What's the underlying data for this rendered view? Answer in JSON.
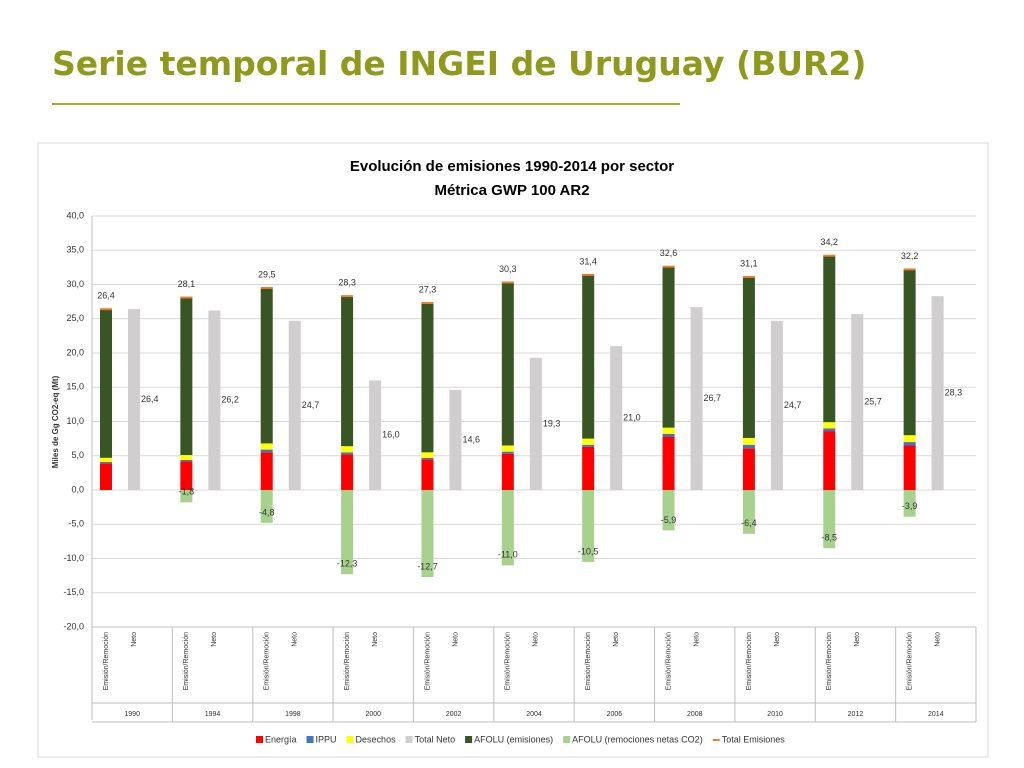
{
  "slide_title": "Serie temporal de INGEI de Uruguay (BUR2)",
  "chart_data": {
    "type": "stacked_bar",
    "title": [
      "Evolución de emisiones 1990-2014 por sector",
      "Métrica GWP 100 AR2"
    ],
    "y_label": "Miles de Gg CO2-eq (Mt)",
    "categories": [
      "1990",
      "1994",
      "1998",
      "2000",
      "2002",
      "2004",
      "2006",
      "2008",
      "2010",
      "2012",
      "2014"
    ],
    "sub_categories": [
      "Emisión/Remoción",
      "Neto"
    ],
    "ylim": [
      -20,
      40
    ],
    "yticks": [
      {
        "value": 40,
        "label": "40,0"
      },
      {
        "value": 35,
        "label": "35,0"
      },
      {
        "value": 30,
        "label": "30,0"
      },
      {
        "value": 25,
        "label": "25,0"
      },
      {
        "value": 20,
        "label": "20,0"
      },
      {
        "value": 15,
        "label": "15,0"
      },
      {
        "value": 10,
        "label": "10,0"
      },
      {
        "value": 5,
        "label": "5,0"
      },
      {
        "value": 0,
        "label": "0,0"
      },
      {
        "value": -5,
        "label": "-5,0"
      },
      {
        "value": -10,
        "label": "-10,0"
      },
      {
        "value": -15,
        "label": "-15,0"
      },
      {
        "value": -20,
        "label": "-20,0"
      }
    ],
    "grid": true,
    "series": [
      {
        "name": "Energía",
        "color": "#ff0000",
        "stack": "emision",
        "values": [
          3.9,
          4.2,
          5.5,
          5.2,
          4.5,
          5.3,
          6.3,
          7.8,
          6.1,
          8.6,
          6.5
        ]
      },
      {
        "name": "IPPU",
        "color": "#4472c4",
        "stack": "emision",
        "values": [
          0.2,
          0.2,
          0.4,
          0.3,
          0.2,
          0.3,
          0.3,
          0.4,
          0.5,
          0.4,
          0.5
        ]
      },
      {
        "name": "Desechos",
        "color": "#ffff00",
        "stack": "emision",
        "values": [
          0.6,
          0.7,
          0.9,
          0.9,
          0.8,
          0.9,
          0.9,
          0.9,
          1.0,
          0.9,
          1.0
        ]
      },
      {
        "name": "Total Neto",
        "color": "#d0cece",
        "stack": "neto",
        "values": [
          26.4,
          26.2,
          24.7,
          16.0,
          14.6,
          19.3,
          21.0,
          26.7,
          24.7,
          25.7,
          28.3
        ],
        "value_labels": [
          "26,4",
          "26,2",
          "24,7",
          "16,0",
          "14,6",
          "19,3",
          "21,0",
          "26,7",
          "24,7",
          "25,7",
          "28,3"
        ]
      },
      {
        "name": "AFOLU (emisiones)",
        "color": "#375623",
        "stack": "emision",
        "values": [
          21.7,
          23.0,
          22.7,
          21.9,
          21.8,
          23.8,
          23.9,
          23.5,
          23.5,
          24.3,
          24.2
        ]
      },
      {
        "name": "AFOLU (remociones netas CO2)",
        "color": "#a9d18e",
        "stack": "emision",
        "values": [
          null,
          -1.8,
          -4.8,
          -12.3,
          -12.7,
          -11.0,
          -10.5,
          -5.9,
          -6.4,
          -8.5,
          -3.9
        ],
        "value_labels": [
          null,
          "-1,8",
          "-4,8",
          "-12,3",
          "-12,7",
          "-11,0",
          "-10,5",
          "-5,9",
          "-6,4",
          "-8,5",
          "-3,9"
        ]
      },
      {
        "name": "Total Emisiones",
        "color": "#ed7d31",
        "stack": "marker",
        "values": [
          26.4,
          28.1,
          29.5,
          28.3,
          27.3,
          30.3,
          31.4,
          32.6,
          31.1,
          34.2,
          32.2
        ],
        "value_labels": [
          "26,4",
          "28,1",
          "29,5",
          "28,3",
          "27,3",
          "30,3",
          "31,4",
          "32,6",
          "31,1",
          "34,2",
          "32,2"
        ]
      }
    ]
  }
}
